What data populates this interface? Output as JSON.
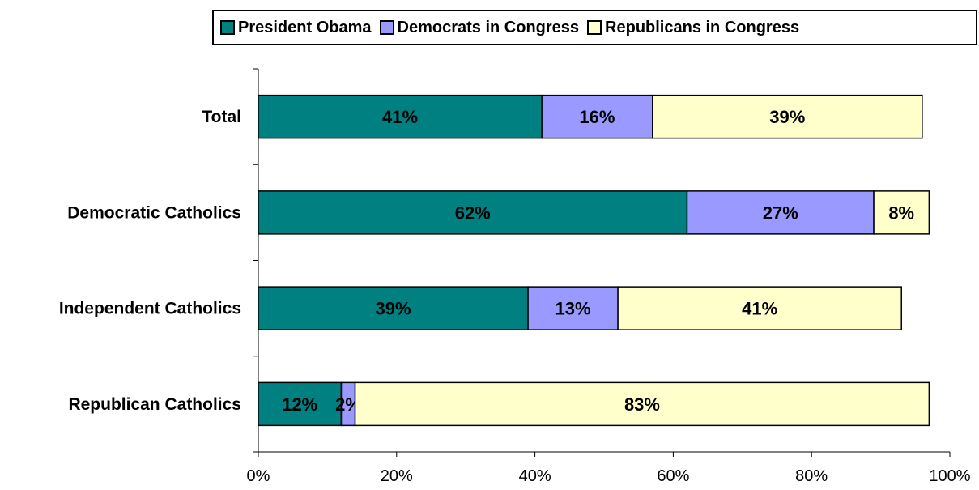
{
  "chart_data": {
    "type": "bar",
    "orientation": "horizontal",
    "stacked": true,
    "categories": [
      "Total",
      "Democratic Catholics",
      "Independent Catholics",
      "Republican Catholics"
    ],
    "series": [
      {
        "name": "President Obama",
        "values": [
          41,
          62,
          39,
          12
        ],
        "labels": [
          "41%",
          "62%",
          "39%",
          "12%"
        ],
        "color": "#008080"
      },
      {
        "name": "Democrats in Congress",
        "values": [
          16,
          27,
          13,
          2
        ],
        "labels": [
          "16%",
          "27%",
          "13%",
          "2%"
        ],
        "color": "#9999FF"
      },
      {
        "name": "Republicans in Congress",
        "values": [
          39,
          8,
          41,
          83
        ],
        "labels": [
          "39%",
          "8%",
          "41%",
          "83%"
        ],
        "color": "#FFFFCC"
      }
    ],
    "xlim": [
      0,
      100
    ],
    "x_ticks": [
      "0%",
      "20%",
      "40%",
      "60%",
      "80%",
      "100%"
    ],
    "grid": false,
    "legend_position": "top"
  }
}
